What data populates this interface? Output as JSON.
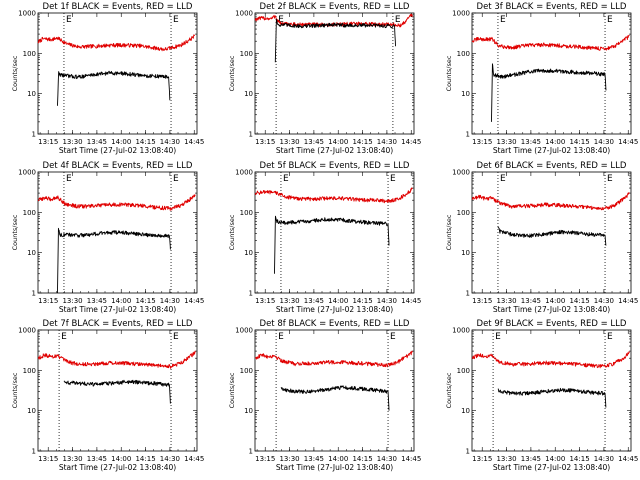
{
  "chart_data": [
    {
      "type": "line",
      "title": "Det 1f BLACK = Events, RED = LLD",
      "xlabel": "Start Time (27-Jul-02 13:08:40)",
      "ylabel": "Counts/sec",
      "yscale": "log",
      "ylim": [
        1,
        1000
      ],
      "y_ticks": [
        "1",
        "10",
        "100",
        "1000"
      ],
      "x_ticks": [
        "13:15",
        "13:30",
        "13:45",
        "14:00",
        "14:15",
        "14:30",
        "14:45"
      ],
      "xlim_min": [
        0,
        98
      ],
      "x_tick_min": [
        6.3,
        21.3,
        36.3,
        51.3,
        66.3,
        81.3,
        96.3
      ],
      "markers": [
        {
          "label": "E",
          "x_min": 16
        },
        {
          "label": "E",
          "x_min": 82
        }
      ],
      "series": [
        {
          "name": "LLD",
          "color": "#e00000",
          "x_min": [
            0,
            3,
            8,
            12,
            18,
            25,
            35,
            45,
            55,
            62,
            70,
            78,
            83,
            88,
            93,
            96.5
          ],
          "values": [
            190,
            230,
            220,
            240,
            170,
            145,
            150,
            160,
            160,
            155,
            140,
            125,
            140,
            160,
            210,
            270
          ]
        },
        {
          "name": "Events",
          "color": "#000000",
          "x_min": [
            12,
            12.7,
            13.5,
            17,
            25,
            35,
            45,
            55,
            65,
            75,
            80.5,
            81.3
          ],
          "values": [
            5,
            33,
            30,
            28,
            26,
            30,
            33,
            31,
            28,
            27,
            26,
            7
          ]
        }
      ]
    },
    {
      "type": "line",
      "title": "Det 2f BLACK = Events, RED = LLD",
      "xlabel": "Start Time (27-Jul-02 13:08:40)",
      "ylabel": "Counts/sec",
      "yscale": "log",
      "ylim": [
        1,
        1000
      ],
      "y_ticks": [
        "1",
        "10",
        "100",
        "1000"
      ],
      "x_ticks": [
        "13:15",
        "13:30",
        "13:45",
        "14:00",
        "14:15",
        "14:30",
        "14:45"
      ],
      "xlim_min": [
        0,
        98
      ],
      "x_tick_min": [
        6.3,
        21.3,
        36.3,
        51.3,
        66.3,
        81.3,
        96.3
      ],
      "markers": [
        {
          "label": "E",
          "x_min": 13
        },
        {
          "label": "E",
          "x_min": 85
        }
      ],
      "series": [
        {
          "name": "LLD",
          "color": "#e00000",
          "x_min": [
            0,
            5,
            10,
            12.5,
            13.5,
            16,
            25,
            35,
            45,
            55,
            65,
            75,
            85,
            90,
            95,
            97
          ],
          "values": [
            700,
            750,
            720,
            850,
            700,
            540,
            520,
            520,
            510,
            540,
            540,
            530,
            520,
            480,
            800,
            900
          ]
        },
        {
          "name": "Events",
          "color": "#000000",
          "x_min": [
            12.5,
            13.2,
            14,
            20,
            30,
            40,
            50,
            60,
            70,
            80,
            86,
            86.6
          ],
          "values": [
            60,
            700,
            520,
            500,
            470,
            500,
            510,
            490,
            500,
            480,
            480,
            150
          ]
        }
      ]
    },
    {
      "type": "line",
      "title": "Det 3f BLACK = Events, RED = LLD",
      "xlabel": "Start Time (27-Jul-02 13:08:40)",
      "ylabel": "Counts/sec",
      "yscale": "log",
      "ylim": [
        1,
        1000
      ],
      "y_ticks": [
        "1",
        "10",
        "100",
        "1000"
      ],
      "x_ticks": [
        "13:15",
        "13:30",
        "13:45",
        "14:00",
        "14:15",
        "14:30",
        "14:45"
      ],
      "xlim_min": [
        0,
        98
      ],
      "x_tick_min": [
        6.3,
        21.3,
        36.3,
        51.3,
        66.3,
        81.3,
        96.3
      ],
      "markers": [
        {
          "label": "E",
          "x_min": 16
        },
        {
          "label": "E",
          "x_min": 82
        }
      ],
      "series": [
        {
          "name": "LLD",
          "color": "#e00000",
          "x_min": [
            0,
            4,
            8,
            12,
            17,
            25,
            35,
            45,
            55,
            65,
            75,
            82,
            88,
            93,
            97
          ],
          "values": [
            200,
            230,
            220,
            230,
            150,
            140,
            160,
            165,
            155,
            145,
            135,
            130,
            150,
            200,
            270
          ]
        },
        {
          "name": "Events",
          "color": "#000000",
          "x_min": [
            12,
            12.6,
            13.4,
            17,
            25,
            35,
            45,
            55,
            65,
            75,
            82,
            82.6
          ],
          "values": [
            2,
            55,
            30,
            26,
            29,
            35,
            38,
            36,
            34,
            32,
            30,
            12
          ]
        }
      ]
    },
    {
      "type": "line",
      "title": "Det 4f BLACK = Events, RED = LLD",
      "xlabel": "Start Time (27-Jul-02 13:08:40)",
      "ylabel": "Counts/sec",
      "yscale": "log",
      "ylim": [
        1,
        1000
      ],
      "y_ticks": [
        "1",
        "10",
        "100",
        "1000"
      ],
      "x_ticks": [
        "13:15",
        "13:30",
        "13:45",
        "14:00",
        "14:15",
        "14:30",
        "14:45"
      ],
      "xlim_min": [
        0,
        98
      ],
      "x_tick_min": [
        6.3,
        21.3,
        36.3,
        51.3,
        66.3,
        81.3,
        96.3
      ],
      "markers": [
        {
          "label": "E",
          "x_min": 16
        },
        {
          "label": "E",
          "x_min": 82
        }
      ],
      "series": [
        {
          "name": "LLD",
          "color": "#e00000",
          "x_min": [
            0,
            4,
            8,
            12,
            17,
            25,
            35,
            45,
            55,
            65,
            75,
            82,
            88,
            93,
            97
          ],
          "values": [
            200,
            230,
            210,
            240,
            160,
            140,
            145,
            155,
            155,
            145,
            130,
            125,
            150,
            200,
            260
          ]
        },
        {
          "name": "Events",
          "color": "#000000",
          "x_min": [
            12,
            12.6,
            13.4,
            17,
            25,
            35,
            45,
            55,
            65,
            75,
            81,
            81.6
          ],
          "values": [
            1,
            40,
            28,
            28,
            27,
            29,
            32,
            31,
            28,
            27,
            26,
            12
          ]
        }
      ]
    },
    {
      "type": "line",
      "title": "Det 5f BLACK = Events, RED = LLD",
      "xlabel": "Start Time (27-Jul-02 13:08:40)",
      "ylabel": "Counts/sec",
      "yscale": "log",
      "ylim": [
        1,
        1000
      ],
      "y_ticks": [
        "1",
        "10",
        "100",
        "1000"
      ],
      "x_ticks": [
        "13:15",
        "13:30",
        "13:45",
        "14:00",
        "14:15",
        "14:30",
        "14:45"
      ],
      "xlim_min": [
        0,
        98
      ],
      "x_tick_min": [
        6.3,
        21.3,
        36.3,
        51.3,
        66.3,
        81.3,
        96.3
      ],
      "markers": [
        {
          "label": "E",
          "x_min": 16
        },
        {
          "label": "E",
          "x_min": 82
        }
      ],
      "series": [
        {
          "name": "LLD",
          "color": "#e00000",
          "x_min": [
            0,
            5,
            10,
            14,
            18,
            25,
            35,
            45,
            55,
            65,
            75,
            82,
            88,
            93,
            97
          ],
          "values": [
            300,
            320,
            310,
            300,
            250,
            220,
            215,
            225,
            220,
            205,
            200,
            190,
            210,
            280,
            380
          ]
        },
        {
          "name": "Events",
          "color": "#000000",
          "x_min": [
            12,
            12.6,
            13.4,
            17,
            25,
            35,
            45,
            55,
            65,
            75,
            82,
            82.6
          ],
          "values": [
            3,
            80,
            60,
            55,
            57,
            62,
            68,
            64,
            58,
            54,
            52,
            15
          ]
        }
      ]
    },
    {
      "type": "line",
      "title": "Det 6f BLACK = Events, RED = LLD",
      "xlabel": "Start Time (27-Jul-02 13:08:40)",
      "ylabel": "Counts/sec",
      "yscale": "log",
      "ylim": [
        1,
        1000
      ],
      "y_ticks": [
        "1",
        "10",
        "100",
        "1000"
      ],
      "x_ticks": [
        "13:15",
        "13:30",
        "13:45",
        "14:00",
        "14:15",
        "14:30",
        "14:45"
      ],
      "xlim_min": [
        0,
        98
      ],
      "x_tick_min": [
        6.3,
        21.3,
        36.3,
        51.3,
        66.3,
        81.3,
        96.3
      ],
      "markers": [
        {
          "label": "E",
          "x_min": 16
        },
        {
          "label": "E",
          "x_min": 82
        }
      ],
      "series": [
        {
          "name": "LLD",
          "color": "#e00000",
          "x_min": [
            0,
            4,
            8,
            12,
            17,
            25,
            35,
            45,
            55,
            65,
            75,
            82,
            88,
            93,
            97
          ],
          "values": [
            210,
            250,
            220,
            230,
            170,
            140,
            145,
            155,
            150,
            140,
            130,
            125,
            150,
            210,
            290
          ]
        },
        {
          "name": "Events",
          "color": "#000000",
          "x_min": [
            16,
            17,
            25,
            35,
            45,
            55,
            65,
            75,
            82,
            82.6
          ],
          "values": [
            45,
            34,
            28,
            26,
            29,
            33,
            31,
            28,
            27,
            15
          ]
        }
      ]
    },
    {
      "type": "line",
      "title": "Det 7f BLACK = Events, RED = LLD",
      "xlabel": "Start Time (27-Jul-02 13:08:40)",
      "ylabel": "Counts/sec",
      "yscale": "log",
      "ylim": [
        1,
        1000
      ],
      "y_ticks": [
        "1",
        "10",
        "100",
        "1000"
      ],
      "x_ticks": [
        "13:15",
        "13:30",
        "13:45",
        "14:00",
        "14:15",
        "14:30",
        "14:45"
      ],
      "xlim_min": [
        0,
        98
      ],
      "x_tick_min": [
        6.3,
        21.3,
        36.3,
        51.3,
        66.3,
        81.3,
        96.3
      ],
      "markers": [
        {
          "label": "E",
          "x_min": 13
        },
        {
          "label": "E",
          "x_min": 82
        }
      ],
      "series": [
        {
          "name": "LLD",
          "color": "#e00000",
          "x_min": [
            0,
            4,
            8,
            12,
            17,
            25,
            35,
            45,
            55,
            65,
            75,
            82,
            88,
            93,
            97
          ],
          "values": [
            200,
            240,
            220,
            230,
            170,
            140,
            145,
            155,
            150,
            140,
            130,
            125,
            150,
            210,
            280
          ]
        },
        {
          "name": "Events",
          "color": "#000000",
          "x_min": [
            16,
            17,
            25,
            35,
            45,
            55,
            65,
            75,
            81,
            81.6
          ],
          "values": [
            55,
            50,
            48,
            45,
            48,
            52,
            50,
            46,
            44,
            15
          ]
        }
      ]
    },
    {
      "type": "line",
      "title": "Det 8f BLACK = Events, RED = LLD",
      "xlabel": "Start Time (27-Jul-02 13:08:40)",
      "ylabel": "Counts/sec",
      "yscale": "log",
      "ylim": [
        1,
        1000
      ],
      "y_ticks": [
        "1",
        "10",
        "100",
        "1000"
      ],
      "x_ticks": [
        "13:15",
        "13:30",
        "13:45",
        "14:00",
        "14:15",
        "14:30",
        "14:45"
      ],
      "xlim_min": [
        0,
        98
      ],
      "x_tick_min": [
        6.3,
        21.3,
        36.3,
        51.3,
        66.3,
        81.3,
        96.3
      ],
      "markers": [
        {
          "label": "E",
          "x_min": 13
        },
        {
          "label": "E",
          "x_min": 82
        }
      ],
      "series": [
        {
          "name": "LLD",
          "color": "#e00000",
          "x_min": [
            0,
            4,
            8,
            12,
            17,
            25,
            35,
            45,
            55,
            65,
            75,
            82,
            88,
            93,
            97
          ],
          "values": [
            200,
            240,
            220,
            230,
            170,
            145,
            150,
            160,
            160,
            150,
            140,
            135,
            160,
            220,
            280
          ]
        },
        {
          "name": "Events",
          "color": "#000000",
          "x_min": [
            16,
            17,
            25,
            35,
            45,
            55,
            65,
            75,
            82,
            82.6
          ],
          "values": [
            38,
            34,
            30,
            30,
            34,
            38,
            35,
            32,
            30,
            10
          ]
        }
      ]
    },
    {
      "type": "line",
      "title": "Det 9f BLACK = Events, RED = LLD",
      "xlabel": "Start Time (27-Jul-02 13:08:40)",
      "ylabel": "Counts/sec",
      "yscale": "log",
      "ylim": [
        1,
        1000
      ],
      "y_ticks": [
        "1",
        "10",
        "100",
        "1000"
      ],
      "x_ticks": [
        "13:15",
        "13:30",
        "13:45",
        "14:00",
        "14:15",
        "14:30",
        "14:45"
      ],
      "xlim_min": [
        0,
        98
      ],
      "x_tick_min": [
        6.3,
        21.3,
        36.3,
        51.3,
        66.3,
        81.3,
        96.3
      ],
      "markers": [
        {
          "label": "E",
          "x_min": 13
        },
        {
          "label": "E",
          "x_min": 82
        }
      ],
      "series": [
        {
          "name": "LLD",
          "color": "#e00000",
          "x_min": [
            0,
            4,
            8,
            12,
            17,
            25,
            35,
            45,
            55,
            65,
            75,
            82,
            88,
            93,
            97
          ],
          "values": [
            200,
            240,
            220,
            230,
            160,
            140,
            145,
            155,
            150,
            140,
            130,
            125,
            150,
            200,
            270
          ]
        },
        {
          "name": "Events",
          "color": "#000000",
          "x_min": [
            16,
            17,
            25,
            35,
            45,
            55,
            65,
            75,
            82,
            82.6
          ],
          "values": [
            35,
            30,
            27,
            27,
            30,
            33,
            31,
            28,
            27,
            12
          ]
        }
      ]
    }
  ]
}
